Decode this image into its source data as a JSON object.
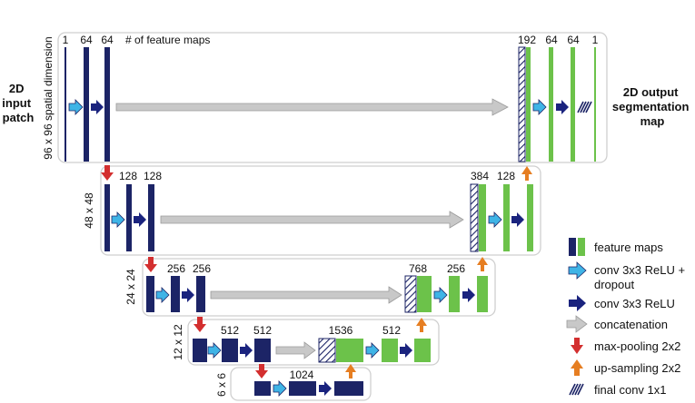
{
  "input_label": [
    "2D",
    "input",
    "patch"
  ],
  "output_label": [
    "2D output",
    "segmentation",
    "map"
  ],
  "feature_maps_note": "# of feature maps",
  "levels": [
    {
      "dimension": "96 x 96 spatial dimension",
      "counts": [
        "1",
        "64",
        "64",
        "192",
        "64",
        "64",
        "1"
      ]
    },
    {
      "dimension": "48 x 48",
      "counts": [
        "128",
        "128",
        "384",
        "128"
      ]
    },
    {
      "dimension": "24 x 24",
      "counts": [
        "256",
        "256",
        "768",
        "256"
      ]
    },
    {
      "dimension": "12 x 12",
      "counts": [
        "512",
        "512",
        "1536",
        "512"
      ]
    },
    {
      "dimension": "6 x 6",
      "counts": [
        "1024"
      ]
    }
  ],
  "legend": {
    "feature_maps": "feature maps",
    "conv_dropout": [
      "conv 3x3 ReLU +",
      "dropout"
    ],
    "conv": "conv 3x3 ReLU",
    "concat": "concatenation",
    "maxpool": "max-pooling 2x2",
    "upsample": "up-sampling 2x2",
    "final_conv": "final conv 1x1"
  },
  "colors": {
    "navy": "#1c2466",
    "green": "#6cc24a",
    "light_blue": "#3fb4e6",
    "dark_blue": "#1a237e",
    "gray": "#c8c8c8",
    "red": "#d32f2f",
    "orange": "#e67e22",
    "panel_border": "#cfcfcf"
  }
}
